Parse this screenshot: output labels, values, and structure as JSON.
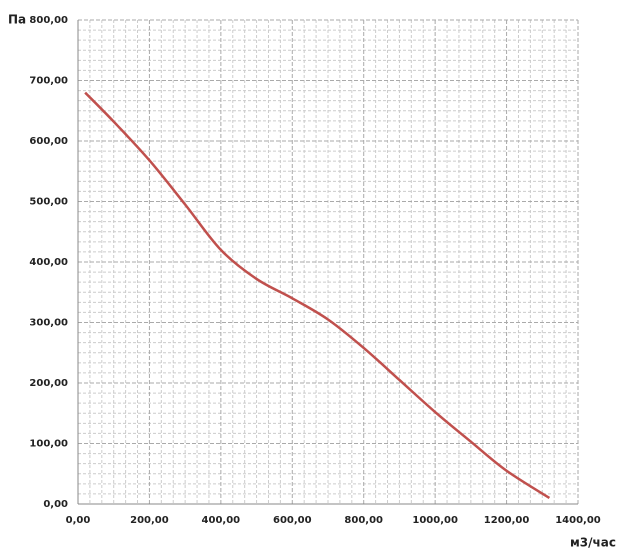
{
  "chart_data": {
    "type": "line",
    "y_label": "Па",
    "x_label": "м3/час",
    "x": [
      20,
      100,
      200,
      300,
      400,
      500,
      600,
      700,
      800,
      900,
      1000,
      1100,
      1200,
      1320
    ],
    "values": [
      680,
      632,
      568,
      495,
      420,
      372,
      340,
      305,
      258,
      205,
      152,
      103,
      55,
      10
    ],
    "color": "#c0504d",
    "xlim": [
      0,
      1400
    ],
    "xticks": [
      {
        "value": 0,
        "label": "0,00"
      },
      {
        "value": 200,
        "label": "200,00"
      },
      {
        "value": 400,
        "label": "400,00"
      },
      {
        "value": 600,
        "label": "600,00"
      },
      {
        "value": 800,
        "label": "800,00"
      },
      {
        "value": 1000,
        "label": "1000,00"
      },
      {
        "value": 1200,
        "label": "1200,00"
      },
      {
        "value": 1400,
        "label": "1400,00"
      }
    ],
    "ylim": [
      0,
      800
    ],
    "yticks": [
      {
        "value": 0,
        "label": "0,00"
      },
      {
        "value": 100,
        "label": "100,00"
      },
      {
        "value": 200,
        "label": "200,00"
      },
      {
        "value": 300,
        "label": "300,00"
      },
      {
        "value": 400,
        "label": "400,00"
      },
      {
        "value": 500,
        "label": "500,00"
      },
      {
        "value": 600,
        "label": "600,00"
      },
      {
        "value": 700,
        "label": "700,00"
      },
      {
        "value": 800,
        "label": "800,00"
      }
    ],
    "grid": true
  }
}
